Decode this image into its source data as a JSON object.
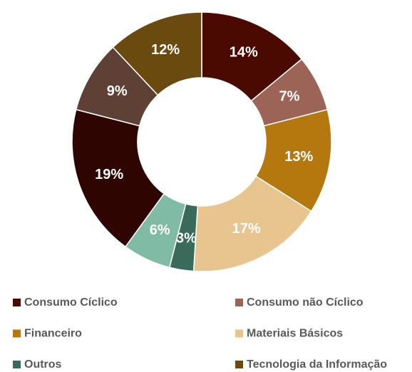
{
  "chart_data": {
    "type": "donut",
    "categories": [
      "Consumo Cíclico",
      "Consumo não Cíclico",
      "Financeiro",
      "Materiais Básicos",
      "Outros",
      null,
      null,
      null,
      "Tecnologia da Informação"
    ],
    "values": [
      14,
      7,
      13,
      17,
      3,
      6,
      19,
      9,
      12
    ],
    "value_labels": [
      "14%",
      "7%",
      "13%",
      "17%",
      "3%",
      "6%",
      "19%",
      "9%",
      "12%"
    ],
    "colors": [
      "#4a0a02",
      "#9c6456",
      "#b5780f",
      "#e8c48e",
      "#3a6b5a",
      "#7fbba5",
      "#2e0500",
      "#5e4034",
      "#6b4a10"
    ],
    "legend": "bottom"
  }
}
